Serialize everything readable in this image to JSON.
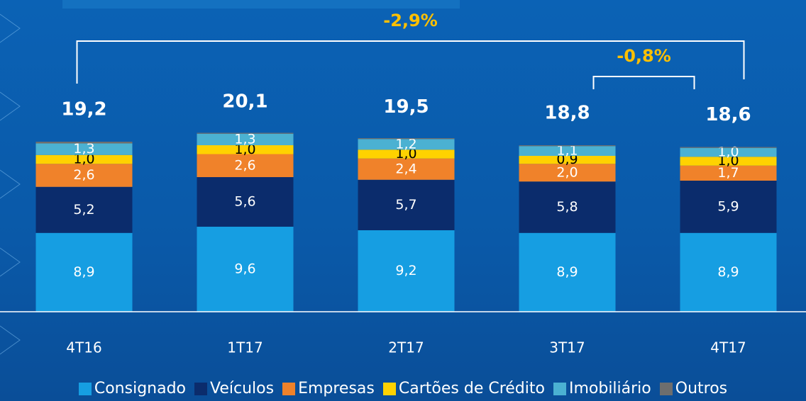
{
  "chart_data": {
    "type": "stacked-bar",
    "categories": [
      "4T16",
      "1T17",
      "2T17",
      "3T17",
      "4T17"
    ],
    "series": [
      {
        "name": "Consignado",
        "color": "#169ee2",
        "values": [
          8.9,
          9.6,
          9.2,
          8.9,
          8.9
        ],
        "value_labels": [
          "8,9",
          "9,6",
          "9,2",
          "8,9",
          "8,9"
        ]
      },
      {
        "name": "Veículos",
        "color": "#0b2c6c",
        "values": [
          5.2,
          5.6,
          5.7,
          5.8,
          5.9
        ],
        "value_labels": [
          "5,2",
          "5,6",
          "5,7",
          "5,8",
          "5,9"
        ]
      },
      {
        "name": "Empresas",
        "color": "#f0822a",
        "values": [
          2.6,
          2.6,
          2.4,
          2.0,
          1.7
        ],
        "value_labels": [
          "2,6",
          "2,6",
          "2,4",
          "2,0",
          "1,7"
        ]
      },
      {
        "name": "Cartões de Crédito",
        "color": "#ffd200",
        "values": [
          1.0,
          1.0,
          1.0,
          0.9,
          1.0
        ],
        "value_labels": [
          "1,0",
          "1,0",
          "1,0",
          "0,9",
          "1,0"
        ]
      },
      {
        "name": "Imobiliário",
        "color": "#4bb1d2",
        "values": [
          1.3,
          1.3,
          1.2,
          1.1,
          1.0
        ],
        "value_labels": [
          "1,3",
          "1,3",
          "1,2",
          "1,1",
          "1,0"
        ]
      },
      {
        "name": "Outros",
        "color": "#6e6e6e",
        "values": [
          0.2,
          0.1,
          0.1,
          0.1,
          0.1
        ]
      }
    ],
    "totals": [
      19.2,
      20.1,
      19.5,
      18.8,
      18.6
    ],
    "total_labels": [
      "19,2",
      "20,1",
      "19,5",
      "18,8",
      "18,6"
    ],
    "annotations": [
      {
        "text": "-2,9%",
        "from": "4T16",
        "to": "4T17"
      },
      {
        "text": "-0,8%",
        "from": "3T17",
        "to": "4T17"
      }
    ],
    "ylim": [
      0,
      35.2
    ]
  }
}
